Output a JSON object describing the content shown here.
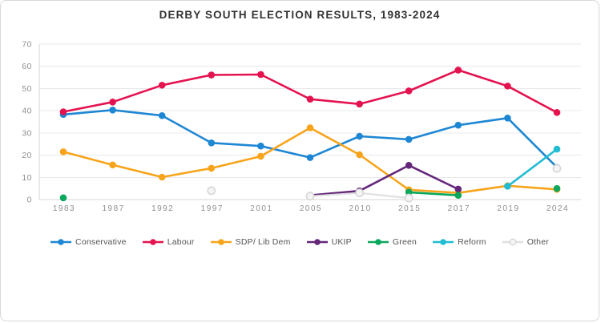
{
  "title": "DERBY SOUTH ELECTION RESULTS, 1983-2024",
  "colors": {
    "background": "#ffffff",
    "border": "#d8d8d8",
    "title_text": "#333333",
    "grid": "#e8e8e8",
    "axis": "#d4d4d4",
    "tick_label": "#8f8f8f",
    "legend_label": "#555555"
  },
  "chart_data": {
    "type": "line",
    "title": "DERBY SOUTH ELECTION RESULTS, 1983-2024",
    "xlabel": "",
    "ylabel": "",
    "ylim": [
      0,
      70
    ],
    "y_ticks": [
      0,
      10,
      20,
      30,
      40,
      50,
      60,
      70
    ],
    "grid": true,
    "legend_position": "bottom",
    "categories": [
      "1983",
      "1987",
      "1992",
      "1997",
      "2001",
      "2005",
      "2010",
      "2015",
      "2017",
      "2019",
      "2024"
    ],
    "series": [
      {
        "name": "Conservative",
        "color": "#1e87d4",
        "values": [
          38.3,
          40.3,
          37.8,
          25.5,
          24.1,
          18.9,
          28.5,
          27.1,
          33.5,
          36.7,
          14.5
        ]
      },
      {
        "name": "Labour",
        "color": "#e4134f",
        "values": [
          39.5,
          43.9,
          51.5,
          56.1,
          56.3,
          45.2,
          43.0,
          48.9,
          58.3,
          51.1,
          39.2
        ]
      },
      {
        "name": "SDP/ Lib Dem",
        "color": "#f7a41b",
        "values": [
          21.5,
          15.6,
          10.1,
          14.1,
          19.5,
          32.3,
          20.2,
          4.4,
          3.0,
          6.2,
          4.6
        ]
      },
      {
        "name": "UKIP",
        "color": "#65277a",
        "values": [
          null,
          null,
          null,
          null,
          null,
          1.9,
          3.9,
          15.4,
          4.7,
          null,
          null
        ]
      },
      {
        "name": "Green",
        "color": "#0aa75c",
        "values": [
          0.8,
          null,
          null,
          null,
          null,
          null,
          null,
          3.3,
          1.9,
          null,
          5.0
        ]
      },
      {
        "name": "Reform",
        "color": "#22bcd3",
        "values": [
          null,
          null,
          null,
          null,
          null,
          null,
          null,
          null,
          null,
          6.0,
          22.7
        ]
      },
      {
        "name": "Other",
        "color": "#e0e0e0",
        "marker_fill": "#f5f5f5",
        "marker_stroke": "#d6d6d6",
        "values": [
          null,
          null,
          null,
          4.0,
          null,
          1.5,
          3.0,
          0.7,
          null,
          null,
          14.0
        ]
      }
    ]
  }
}
